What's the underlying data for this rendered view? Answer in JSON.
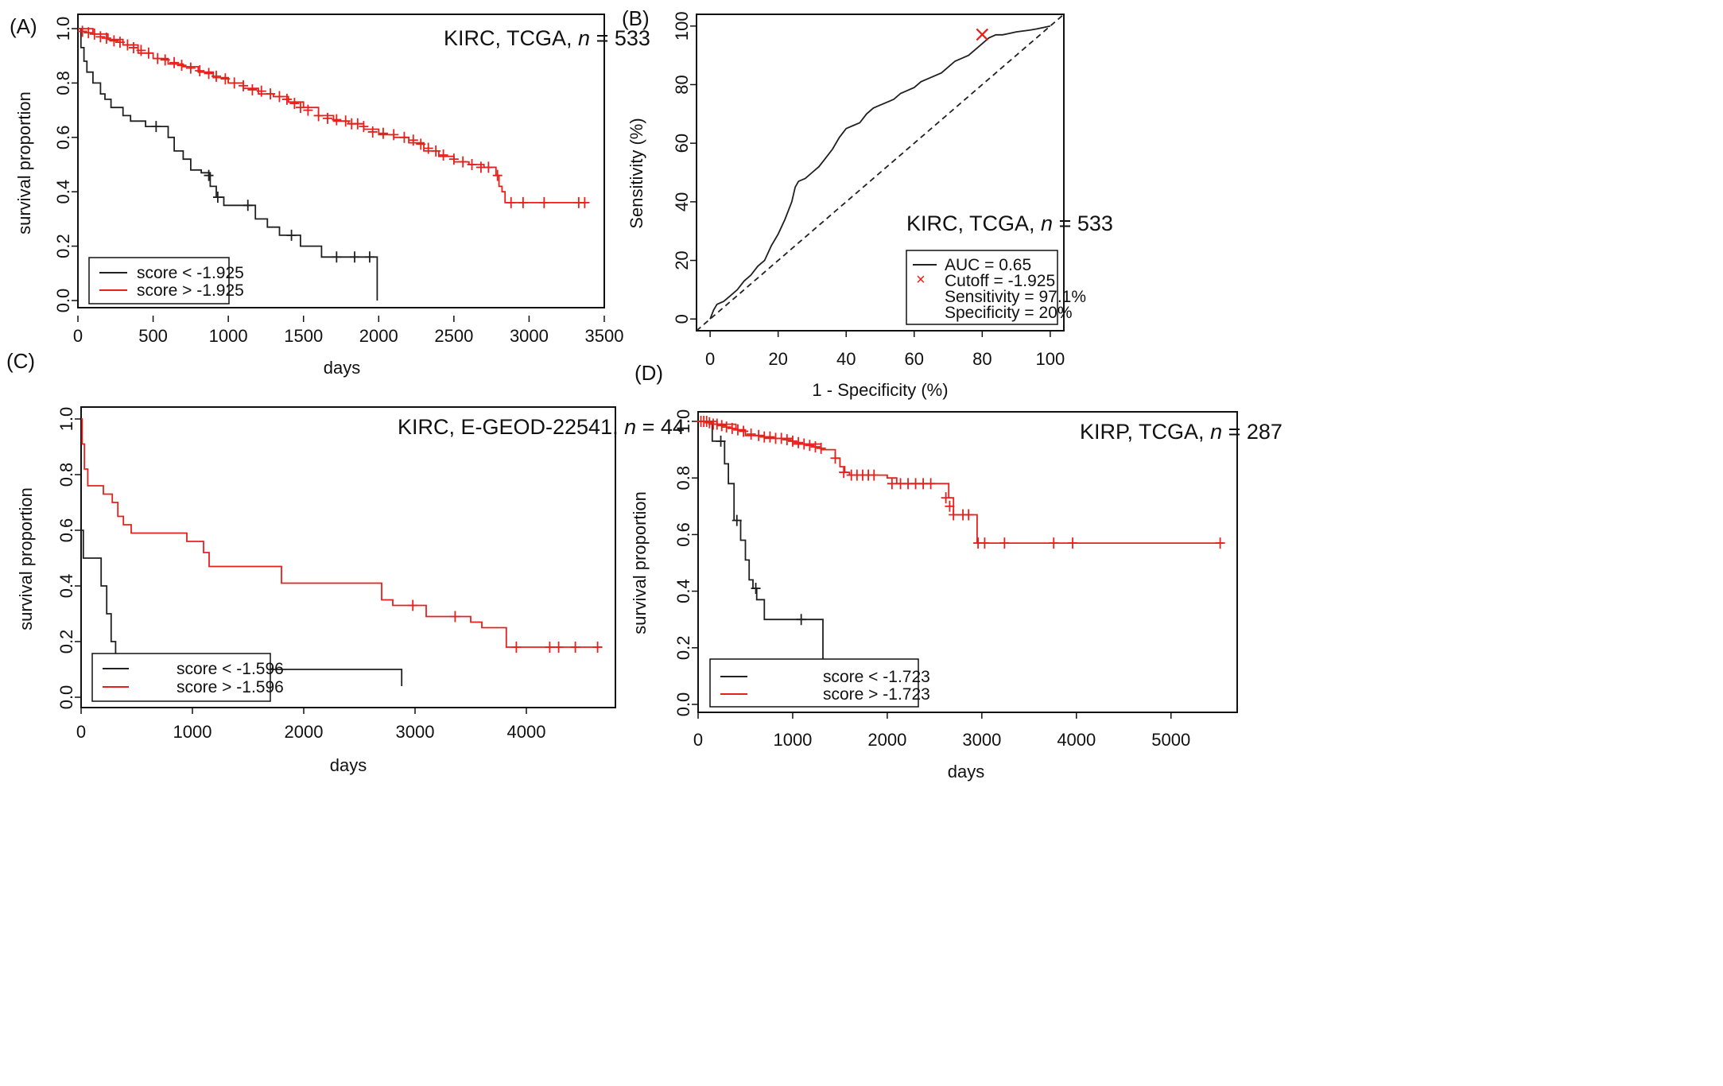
{
  "colors": {
    "low": "#202020",
    "high": "#e8201c",
    "axis": "#111111"
  },
  "chart_data": [
    {
      "id": "A",
      "type": "line",
      "panel_label": "(A)",
      "title": "KIRC, TCGA, n = 533",
      "annotation": {
        "prefix": "KIRC, TCGA, ",
        "n_symbol": "n",
        "suffix": " = 533"
      },
      "xlabel": "days",
      "ylabel": "survival proportion",
      "xlim": [
        0,
        3500
      ],
      "ylim": [
        0,
        1
      ],
      "x_ticks": [
        0,
        500,
        1000,
        1500,
        2000,
        2500,
        3000,
        3500
      ],
      "y_ticks": [
        "0.0",
        "0.2",
        "0.4",
        "0.6",
        "0.8",
        "1.0"
      ],
      "legend": [
        "score < -1.925",
        "score > -1.925"
      ],
      "legend_position": "bottom-left",
      "series": [
        {
          "name": "score < -1.925",
          "color_key": "low",
          "x": [
            0,
            20,
            40,
            60,
            100,
            150,
            180,
            220,
            260,
            300,
            350,
            400,
            450,
            500,
            560,
            600,
            640,
            700,
            750,
            820,
            880,
            920,
            970,
            1040,
            1100,
            1180,
            1260,
            1340,
            1400,
            1480,
            1620,
            1750,
            1850,
            1990,
            1990
          ],
          "y": [
            1.0,
            0.93,
            0.88,
            0.84,
            0.8,
            0.76,
            0.74,
            0.71,
            0.71,
            0.68,
            0.66,
            0.66,
            0.64,
            0.64,
            0.64,
            0.6,
            0.55,
            0.52,
            0.48,
            0.47,
            0.42,
            0.38,
            0.35,
            0.35,
            0.35,
            0.3,
            0.27,
            0.24,
            0.24,
            0.2,
            0.16,
            0.16,
            0.16,
            0.16,
            0.0
          ],
          "censor_x": [
            520,
            870,
            930,
            1130,
            1420,
            1720,
            1840,
            1940
          ],
          "censor_y": [
            0.64,
            0.46,
            0.38,
            0.35,
            0.24,
            0.16,
            0.16,
            0.16
          ]
        },
        {
          "name": "score > -1.925",
          "color_key": "high",
          "x": [
            0,
            100,
            200,
            300,
            400,
            500,
            600,
            700,
            800,
            900,
            1000,
            1100,
            1200,
            1300,
            1400,
            1500,
            1600,
            1700,
            1800,
            1900,
            2000,
            2100,
            2200,
            2300,
            2400,
            2500,
            2600,
            2700,
            2750,
            2780,
            2800,
            2820,
            2840,
            3380
          ],
          "y": [
            1.0,
            0.98,
            0.96,
            0.94,
            0.91,
            0.89,
            0.87,
            0.86,
            0.84,
            0.82,
            0.8,
            0.78,
            0.76,
            0.75,
            0.73,
            0.71,
            0.68,
            0.66,
            0.65,
            0.63,
            0.61,
            0.6,
            0.58,
            0.55,
            0.53,
            0.51,
            0.5,
            0.49,
            0.49,
            0.46,
            0.42,
            0.4,
            0.36,
            0.36
          ],
          "censor_x": [
            30,
            70,
            110,
            150,
            190,
            240,
            280,
            330,
            370,
            420,
            470,
            530,
            580,
            640,
            690,
            750,
            810,
            870,
            920,
            980,
            1040,
            1100,
            1160,
            1220,
            1280,
            1340,
            1390,
            1440,
            1480,
            1530,
            1600,
            1660,
            1720,
            1780,
            1820,
            1860,
            1900,
            1960,
            2030,
            2100,
            2170,
            2230,
            2280,
            2330,
            2380,
            2430,
            2500,
            2560,
            2620,
            2680,
            2730,
            2790,
            2880,
            2960,
            3100,
            3330,
            3370
          ],
          "censor_y": [
            0.99,
            0.985,
            0.98,
            0.97,
            0.965,
            0.955,
            0.95,
            0.94,
            0.93,
            0.92,
            0.91,
            0.89,
            0.885,
            0.875,
            0.865,
            0.855,
            0.845,
            0.835,
            0.825,
            0.815,
            0.8,
            0.79,
            0.775,
            0.77,
            0.76,
            0.75,
            0.74,
            0.725,
            0.71,
            0.7,
            0.68,
            0.67,
            0.665,
            0.66,
            0.65,
            0.65,
            0.64,
            0.62,
            0.615,
            0.61,
            0.6,
            0.59,
            0.575,
            0.56,
            0.55,
            0.535,
            0.52,
            0.51,
            0.5,
            0.49,
            0.49,
            0.46,
            0.36,
            0.36,
            0.36,
            0.36,
            0.36
          ]
        }
      ]
    },
    {
      "id": "B",
      "type": "line",
      "panel_label": "(B)",
      "title": "KIRC, TCGA, n = 533",
      "annotation": {
        "prefix": "KIRC, TCGA, ",
        "n_symbol": "n",
        "suffix": " = 533"
      },
      "xlabel": "1 - Specificity (%)",
      "ylabel": "Sensitivity (%)",
      "xlim": [
        -4,
        104
      ],
      "ylim": [
        -4,
        104
      ],
      "x_ticks": [
        0,
        20,
        40,
        60,
        80,
        100
      ],
      "y_ticks": [
        0,
        20,
        40,
        60,
        80,
        100
      ],
      "legend": [
        "AUC = 0.65",
        "Cutoff = -1.925",
        "Sensitivity = 97.1%",
        "Specificity = 20%"
      ],
      "legend_position": "bottom-right",
      "series": [
        {
          "name": "ROC",
          "color_key": "low",
          "x": [
            0,
            1,
            2,
            4,
            6,
            8,
            10,
            12,
            14,
            16,
            18,
            20,
            22,
            24,
            25,
            26,
            28,
            30,
            32,
            34,
            36,
            38,
            40,
            42,
            44,
            46,
            48,
            50,
            52,
            54,
            56,
            58,
            60,
            62,
            64,
            66,
            68,
            70,
            72,
            74,
            76,
            78,
            80,
            82,
            84,
            86,
            88,
            90,
            92,
            94,
            96,
            98,
            100
          ],
          "y": [
            0,
            3,
            5,
            6,
            8,
            10,
            13,
            15,
            18,
            20,
            25,
            29,
            34,
            40,
            45,
            47,
            48,
            50,
            52,
            55,
            58,
            62,
            65,
            66,
            67,
            70,
            72,
            73,
            74,
            75,
            77,
            78,
            79,
            81,
            82,
            83,
            84,
            86,
            88,
            89,
            90,
            92,
            94,
            96,
            97,
            97,
            97.5,
            98,
            98.3,
            98.6,
            99,
            99.5,
            100
          ]
        },
        {
          "name": "chance",
          "color_key": "low",
          "x": [
            -4,
            104
          ],
          "y": [
            -4,
            104
          ]
        }
      ],
      "cutoff_point": {
        "x": 80,
        "y": 97.1
      }
    },
    {
      "id": "C",
      "type": "line",
      "panel_label": "(C)",
      "title": "KIRC, E-GEOD-22541, n = 44",
      "annotation": {
        "prefix": "KIRC, E-GEOD-22541, ",
        "n_symbol": "n",
        "suffix": " = 44"
      },
      "xlabel": "days",
      "ylabel": "survival proportion",
      "xlim": [
        0,
        4800
      ],
      "ylim": [
        0,
        1
      ],
      "x_ticks": [
        0,
        1000,
        2000,
        3000,
        4000
      ],
      "y_ticks": [
        "0.0",
        "0.2",
        "0.4",
        "0.6",
        "0.8",
        "1.0"
      ],
      "legend": [
        "score < -1.596",
        "score > -1.596"
      ],
      "legend_position": "bottom-left",
      "series": [
        {
          "name": "score < -1.596",
          "color_key": "low",
          "x": [
            0,
            20,
            180,
            230,
            270,
            310,
            2880,
            2880
          ],
          "y": [
            0.6,
            0.5,
            0.4,
            0.3,
            0.2,
            0.1,
            0.1,
            0.04
          ],
          "censor_x": [],
          "censor_y": []
        },
        {
          "name": "score > -1.596",
          "color_key": "high",
          "x": [
            0,
            10,
            30,
            60,
            200,
            280,
            330,
            380,
            450,
            950,
            1100,
            1150,
            1800,
            2700,
            2800,
            3100,
            3500,
            3600,
            3820,
            4680
          ],
          "y": [
            1.0,
            0.91,
            0.82,
            0.76,
            0.73,
            0.7,
            0.65,
            0.62,
            0.59,
            0.56,
            0.52,
            0.47,
            0.41,
            0.35,
            0.33,
            0.29,
            0.27,
            0.25,
            0.18,
            0.18
          ],
          "censor_x": [
            2980,
            3360,
            3910,
            4210,
            4290,
            4440,
            4640
          ],
          "censor_y": [
            0.33,
            0.29,
            0.18,
            0.18,
            0.18,
            0.18,
            0.18
          ]
        }
      ]
    },
    {
      "id": "D",
      "type": "line",
      "panel_label": "(D)",
      "title": "KIRP, TCGA, n = 287",
      "annotation": {
        "prefix": "KIRP, TCGA, ",
        "n_symbol": "n",
        "suffix": " = 287"
      },
      "xlabel": "days",
      "ylabel": "survival proportion",
      "xlim": [
        0,
        5700
      ],
      "ylim": [
        0,
        1
      ],
      "x_ticks": [
        0,
        1000,
        2000,
        3000,
        4000,
        5000
      ],
      "y_ticks": [
        "0.0",
        "0.2",
        "0.4",
        "0.6",
        "0.8",
        "1.0"
      ],
      "legend": [
        "score < -1.723",
        "score > -1.723"
      ],
      "legend_position": "bottom-left",
      "series": [
        {
          "name": "score < -1.723",
          "color_key": "low",
          "x": [
            0,
            150,
            220,
            280,
            320,
            380,
            450,
            500,
            540,
            580,
            620,
            700,
            1320,
            1320
          ],
          "y": [
            1.0,
            0.93,
            0.93,
            0.85,
            0.78,
            0.65,
            0.58,
            0.51,
            0.44,
            0.41,
            0.37,
            0.3,
            0.3,
            0.05
          ],
          "censor_x": [
            240,
            410,
            610,
            1090
          ],
          "censor_y": [
            0.93,
            0.65,
            0.41,
            0.3
          ]
        },
        {
          "name": "score > -1.723",
          "color_key": "high",
          "x": [
            0,
            200,
            400,
            500,
            700,
            1000,
            1300,
            1450,
            1500,
            1550,
            1600,
            2000,
            2100,
            2600,
            2650,
            2700,
            2900,
            2950,
            5550
          ],
          "y": [
            1.0,
            0.99,
            0.97,
            0.95,
            0.94,
            0.92,
            0.9,
            0.87,
            0.84,
            0.82,
            0.81,
            0.8,
            0.78,
            0.78,
            0.73,
            0.67,
            0.67,
            0.57,
            0.57
          ],
          "censor_x": [
            30,
            60,
            90,
            120,
            160,
            200,
            250,
            300,
            360,
            420,
            480,
            560,
            640,
            700,
            760,
            820,
            880,
            940,
            1000,
            1060,
            1120,
            1180,
            1240,
            1300,
            1450,
            1540,
            1620,
            1680,
            1740,
            1800,
            1860,
            2050,
            2140,
            2220,
            2300,
            2380,
            2460,
            2620,
            2660,
            2700,
            2800,
            2860,
            2960,
            3030,
            3240,
            3760,
            3960,
            5520
          ],
          "censor_y": [
            1.0,
            1.0,
            1.0,
            0.995,
            0.99,
            0.99,
            0.985,
            0.98,
            0.975,
            0.97,
            0.965,
            0.955,
            0.95,
            0.945,
            0.945,
            0.94,
            0.94,
            0.935,
            0.93,
            0.925,
            0.92,
            0.915,
            0.91,
            0.905,
            0.87,
            0.82,
            0.81,
            0.81,
            0.81,
            0.81,
            0.81,
            0.78,
            0.78,
            0.78,
            0.78,
            0.78,
            0.78,
            0.73,
            0.7,
            0.67,
            0.67,
            0.67,
            0.57,
            0.57,
            0.57,
            0.57,
            0.57,
            0.57
          ]
        }
      ]
    }
  ]
}
